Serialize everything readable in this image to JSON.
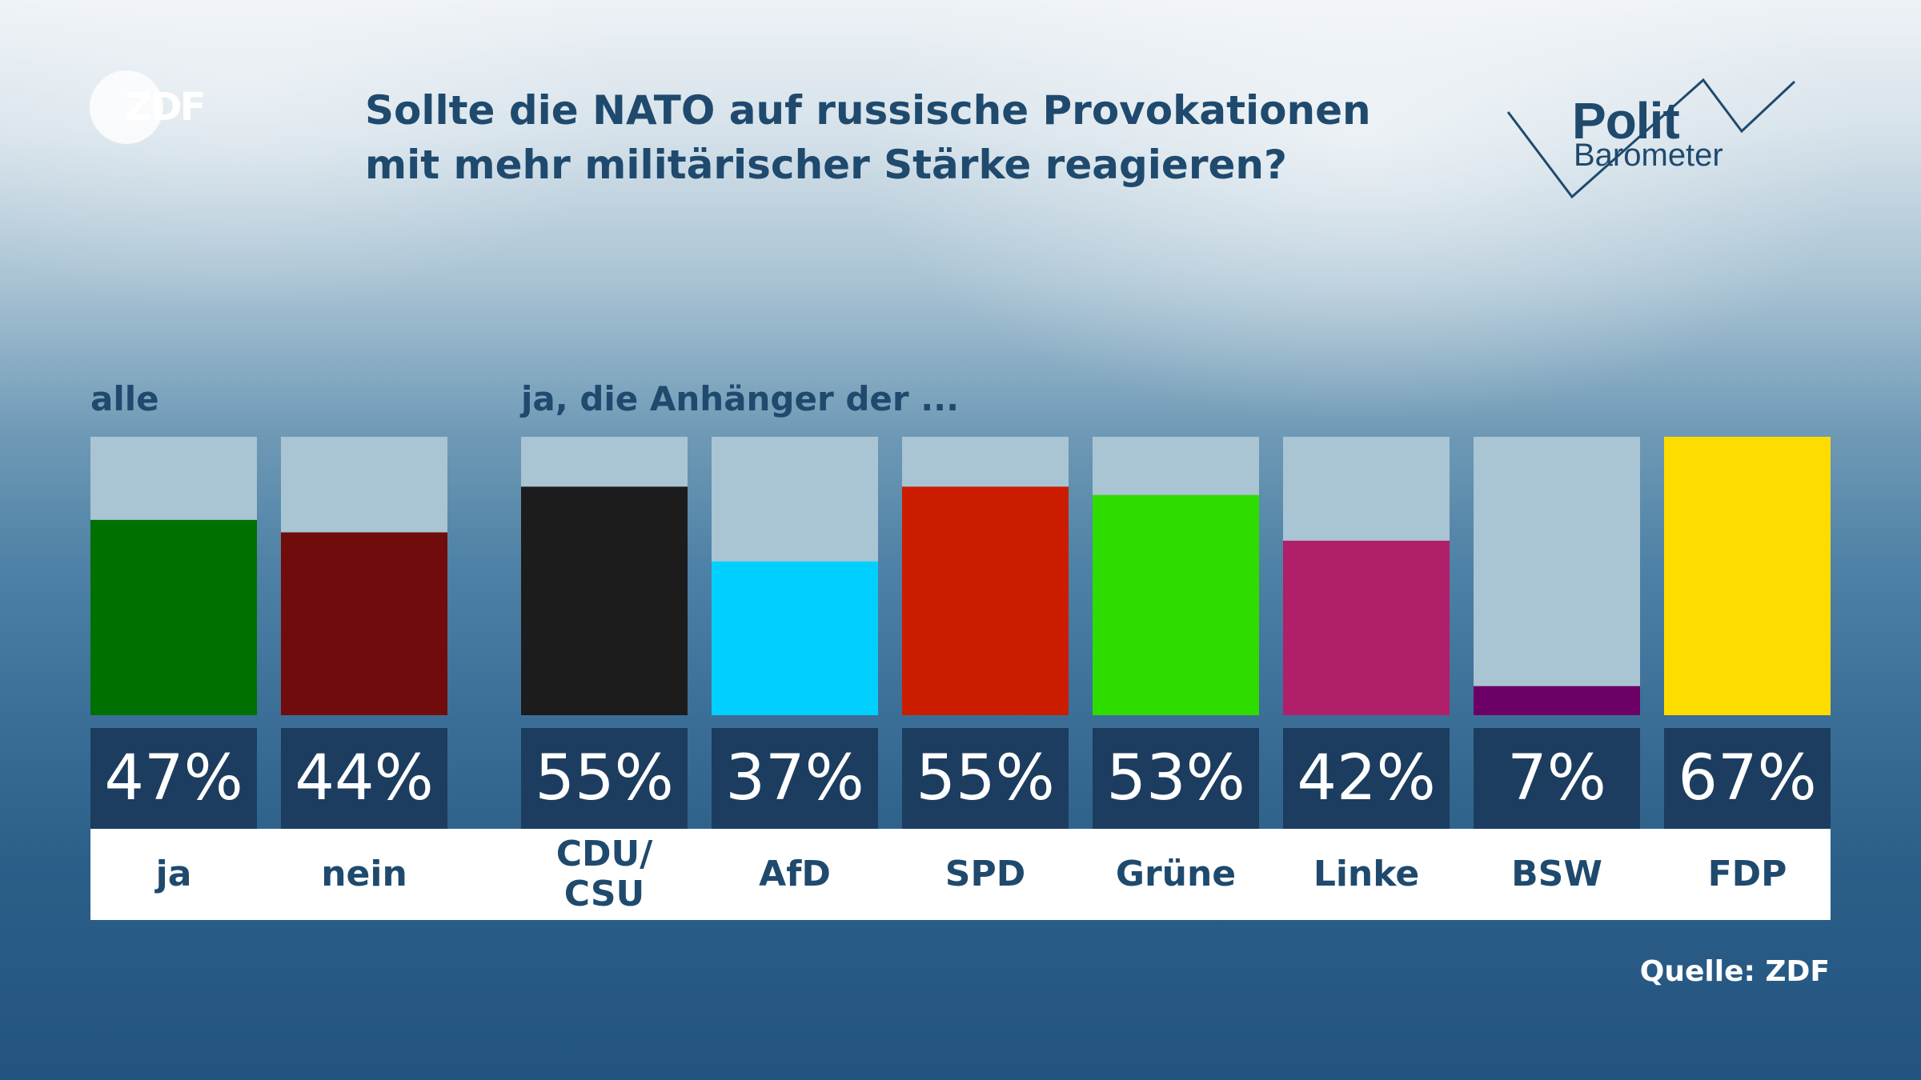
{
  "logo": {
    "text": "ZDF"
  },
  "header": {
    "title_line1": "Sollte die NATO auf russische Provokationen",
    "title_line2": "mit mehr militärischer Stärke reagieren?",
    "brand_line1": "Polit",
    "brand_line2": "Barometer"
  },
  "groups": {
    "all_label": "alle",
    "party_label": "ja, die Anhänger der ..."
  },
  "source": "Quelle: ZDF",
  "chart_data": {
    "type": "bar",
    "title": "Sollte die NATO auf russische Provokationen mit mehr militärischer Stärke reagieren?",
    "categories": [
      "ja",
      "nein",
      "CDU/\nCSU",
      "AfD",
      "SPD",
      "Grüne",
      "Linke",
      "BSW",
      "FDP"
    ],
    "values": [
      47,
      44,
      55,
      37,
      55,
      53,
      42,
      7,
      67
    ],
    "value_labels": [
      "47%",
      "44%",
      "55%",
      "37%",
      "55%",
      "53%",
      "42%",
      "7%",
      "67%"
    ],
    "colors": [
      "#007000",
      "#700c0c",
      "#1c1c1c",
      "#00d0ff",
      "#cc1c00",
      "#2edc00",
      "#b01f6a",
      "#6c0066",
      "#ffdc00"
    ],
    "background_color": "#a9c4d3",
    "ylim": [
      0,
      67
    ],
    "grid": false,
    "unit": "%"
  }
}
